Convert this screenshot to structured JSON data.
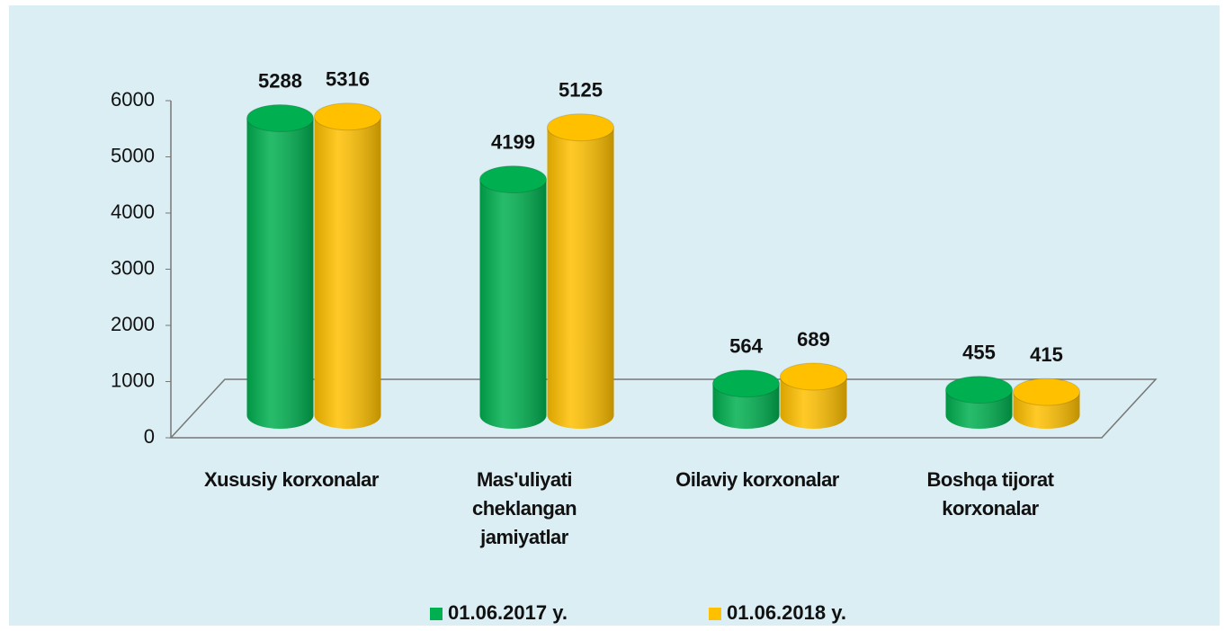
{
  "chart_data": {
    "type": "bar3d",
    "categories": [
      "Xususiy korxonalar",
      "Mas'uliyati cheklangan jamiyatlar",
      "Oilaviy korxonalar",
      "Boshqa tijorat korxonalar"
    ],
    "series": [
      {
        "name": "01.06.2017 y.",
        "color": "#00b050",
        "values": [
          5288,
          4199,
          564,
          455
        ]
      },
      {
        "name": "01.06.2018 y.",
        "color": "#ffc000",
        "values": [
          5316,
          5125,
          689,
          415
        ]
      }
    ],
    "ylim": [
      0,
      6000
    ],
    "yticks": [
      0,
      1000,
      2000,
      3000,
      4000,
      5000,
      6000
    ],
    "legend": "bottom"
  }
}
